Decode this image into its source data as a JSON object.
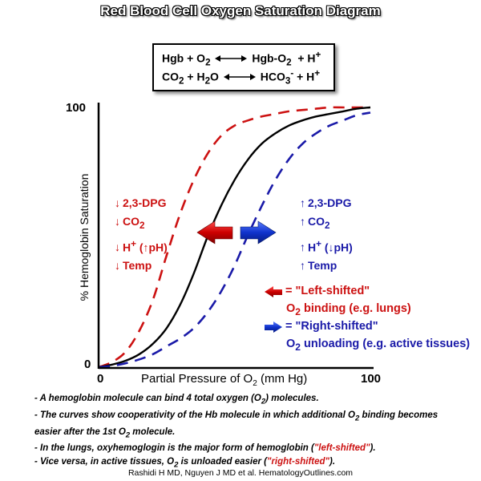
{
  "title": "Red Blood Cell Oxygen Saturation Diagram",
  "equations": {
    "line1_left": "Hgb + O",
    "line1_left_sub": "2",
    "line1_right": "Hgb-O",
    "line1_right_sub": "2",
    "line1_tail": "+ H",
    "line1_tail_sup": "+",
    "line2_left_a": "CO",
    "line2_left_a_sub": "2",
    "line2_left_b": "+ H",
    "line2_left_b_sub": "2",
    "line2_left_c": "O",
    "line2_right": "HCO",
    "line2_right_sub": "3",
    "line2_right_sup": "-",
    "line2_tail": "+ H",
    "line2_tail_sup": "+"
  },
  "left_factors": {
    "items": [
      {
        "arrow": "down",
        "label": "2,3-DPG"
      },
      {
        "arrow": "down",
        "label": "CO",
        "sub": "2"
      },
      {
        "arrow": "down",
        "label": "H",
        "sup": "+",
        "note_arrow": "up",
        "note": "pH"
      },
      {
        "arrow": "down",
        "label": "Temp"
      }
    ]
  },
  "right_factors": {
    "items": [
      {
        "arrow": "up",
        "label": "2,3-DPG"
      },
      {
        "arrow": "up",
        "label": "CO",
        "sub": "2"
      },
      {
        "arrow": "up",
        "label": "H",
        "sup": "+",
        "note_arrow": "down",
        "note": "pH"
      },
      {
        "arrow": "up",
        "label": "Temp"
      }
    ]
  },
  "legend": {
    "left_shifted": "= \"Left-shifted\"",
    "left_desc": "O",
    "left_desc_sub": "2",
    "left_desc_tail": " binding (e.g. lungs)",
    "right_shifted": "= \"Right-shifted\"",
    "right_desc": "O",
    "right_desc_sub": "2",
    "right_desc_tail": " unloading (e.g. active tissues)"
  },
  "footnotes": {
    "line1_a": "- A hemoglobin molecule can bind 4 total oxygen (O",
    "line1_sub": "2",
    "line1_b": ") molecules.",
    "line2_a": "- The curves show cooperativity of the Hb molecule in which additional O",
    "line2_sub": "2",
    "line2_b": " binding becomes",
    "line3_a": "easier after the 1st O",
    "line3_sub": "2",
    "line3_b": " molecule.",
    "line4_a": "- In the lungs, oxyhemoglogin is the major form of hemoglobin (",
    "line4_red": "\"left-shifted\"",
    "line4_b": ").",
    "line5_a": "- Vice versa, in active tissues, O",
    "line5_sub": "2",
    "line5_b": " is unloaded easier (",
    "line5_red": "\"right-shifted\"",
    "line5_c": ")."
  },
  "credit": "Rashidi H MD, Nguyen J MD et al. HematologyOutlines.com",
  "colors": {
    "left": "#cc1111",
    "right": "#1a1aa8",
    "normal": "#000000"
  },
  "chart_data": {
    "type": "line",
    "xlabel": "Partial Pressure of O2 (mm Hg)",
    "xlabel_main": "Partial Pressure of O",
    "xlabel_sub": "2",
    "xlabel_tail": " (mm Hg)",
    "ylabel": "% Hemoglobin Saturation",
    "xlim": [
      0,
      100
    ],
    "ylim": [
      0,
      100
    ],
    "x_tick_labels": [
      "0",
      "100"
    ],
    "y_tick_labels": [
      "0",
      "100"
    ],
    "grid": false,
    "series": [
      {
        "name": "Left-shifted",
        "style": "dashed",
        "color": "#cc1111",
        "x": [
          0,
          5,
          10,
          15,
          20,
          25,
          30,
          35,
          40,
          45,
          50,
          55,
          60,
          65,
          70,
          75,
          80,
          85,
          90,
          95,
          100
        ],
        "y": [
          0,
          2,
          6,
          14,
          26,
          43,
          59,
          72,
          82,
          89,
          93,
          95,
          96.5,
          97.5,
          98.5,
          99,
          99.5,
          100,
          100,
          100,
          100
        ]
      },
      {
        "name": "Normal",
        "style": "solid",
        "color": "#000000",
        "x": [
          0,
          5,
          10,
          15,
          20,
          25,
          30,
          35,
          40,
          45,
          50,
          55,
          60,
          65,
          70,
          75,
          80,
          85,
          90,
          95,
          100
        ],
        "y": [
          0,
          1,
          2.5,
          5,
          9,
          15,
          24,
          36,
          50,
          62,
          72,
          80,
          86,
          90,
          93,
          95,
          96.5,
          97.5,
          98.5,
          99.5,
          100
        ]
      },
      {
        "name": "Right-shifted",
        "style": "dashed",
        "color": "#1a1aa8",
        "x": [
          0,
          5,
          10,
          15,
          20,
          25,
          30,
          35,
          40,
          45,
          50,
          55,
          60,
          65,
          70,
          75,
          80,
          85,
          90,
          95,
          100
        ],
        "y": [
          0,
          0.5,
          1.5,
          3,
          5,
          8,
          11,
          15,
          21,
          29,
          39,
          51,
          62,
          72,
          80,
          86,
          90,
          93,
          95,
          97,
          98
        ]
      }
    ]
  }
}
